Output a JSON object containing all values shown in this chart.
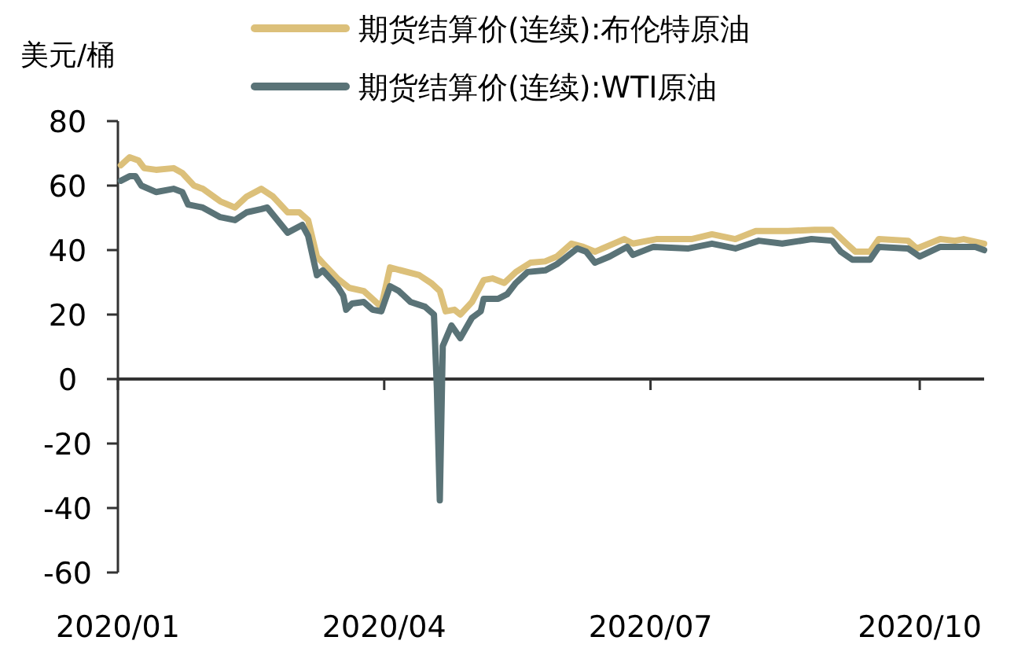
{
  "chart_data": {
    "type": "line",
    "ylabel": "美元/桶",
    "legend": "top",
    "line_style": "solid",
    "marker": "none",
    "xlim": [
      "2020-01-01",
      "2020-10-23"
    ],
    "xticks": [
      {
        "value": "2020-01",
        "label": "2020/01"
      },
      {
        "value": "2020-04",
        "label": "2020/04"
      },
      {
        "value": "2020-07",
        "label": "2020/07"
      },
      {
        "value": "2020-10",
        "label": "2020/10"
      }
    ],
    "ylim": [
      -60,
      80
    ],
    "yticks": [
      -60,
      -40,
      -20,
      0,
      20,
      40,
      60,
      80
    ],
    "series": [
      {
        "name": "期货结算价(连续):布伦特原油",
        "color": "#dcc07a",
        "x": [
          "2020-01-02",
          "2020-01-05",
          "2020-01-08",
          "2020-01-10",
          "2020-01-14",
          "2020-01-20",
          "2020-01-23",
          "2020-01-27",
          "2020-01-30",
          "2020-02-05",
          "2020-02-10",
          "2020-02-14",
          "2020-02-19",
          "2020-02-23",
          "2020-02-28",
          "2020-03-03",
          "2020-03-06",
          "2020-03-09",
          "2020-03-11",
          "2020-03-16",
          "2020-03-20",
          "2020-03-25",
          "2020-03-31",
          "2020-04-03",
          "2020-04-13",
          "2020-04-17",
          "2020-04-20",
          "2020-04-22",
          "2020-04-25",
          "2020-04-27",
          "2020-05-01",
          "2020-05-05",
          "2020-05-08",
          "2020-05-12",
          "2020-05-16",
          "2020-05-21",
          "2020-05-26",
          "2020-05-30",
          "2020-06-04",
          "2020-06-08",
          "2020-06-12",
          "2020-06-22",
          "2020-06-25",
          "2020-07-03",
          "2020-07-15",
          "2020-07-22",
          "2020-07-30",
          "2020-08-06",
          "2020-08-17",
          "2020-08-26",
          "2020-09-01",
          "2020-09-06",
          "2020-09-09",
          "2020-09-14",
          "2020-09-17",
          "2020-09-27",
          "2020-09-30",
          "2020-10-08",
          "2020-10-13",
          "2020-10-16",
          "2020-10-23"
        ],
        "values": [
          66.3,
          68.8,
          67.8,
          65.4,
          64.9,
          65.4,
          63.9,
          60,
          59,
          55.1,
          53.2,
          56.6,
          59,
          56.6,
          51.7,
          51.7,
          49.3,
          38,
          36,
          31.2,
          28.3,
          27.3,
          22.4,
          34.6,
          32.2,
          29.8,
          27.3,
          21,
          21.5,
          20,
          23.9,
          30.7,
          31.2,
          29.8,
          33.2,
          36.1,
          36.5,
          38,
          42,
          41,
          39.5,
          43.4,
          42,
          43.4,
          43.4,
          44.9,
          43.4,
          45.9,
          45.9,
          46.3,
          46.3,
          42,
          39.5,
          39.5,
          43.4,
          42.9,
          40.5,
          43.4,
          42.9,
          43.4,
          42
        ]
      },
      {
        "name": "期货结算价(连续):WTI原油",
        "color": "#5a7377",
        "x": [
          "2020-01-02",
          "2020-01-05",
          "2020-01-07",
          "2020-01-09",
          "2020-01-14",
          "2020-01-20",
          "2020-01-23",
          "2020-01-25",
          "2020-01-30",
          "2020-02-05",
          "2020-02-10",
          "2020-02-14",
          "2020-02-19",
          "2020-02-21",
          "2020-02-28",
          "2020-03-04",
          "2020-03-06",
          "2020-03-09",
          "2020-03-11",
          "2020-03-16",
          "2020-03-18",
          "2020-03-19",
          "2020-03-21",
          "2020-03-25",
          "2020-03-28",
          "2020-03-31",
          "2020-04-03",
          "2020-04-06",
          "2020-04-10",
          "2020-04-15",
          "2020-04-18",
          "2020-04-19",
          "2020-04-20",
          "2020-04-21",
          "2020-04-24",
          "2020-04-27",
          "2020-05-01",
          "2020-05-04",
          "2020-05-05",
          "2020-05-10",
          "2020-05-13",
          "2020-05-16",
          "2020-05-20",
          "2020-05-26",
          "2020-05-30",
          "2020-06-01",
          "2020-06-06",
          "2020-06-09",
          "2020-06-12",
          "2020-06-17",
          "2020-06-23",
          "2020-06-25",
          "2020-07-02",
          "2020-07-14",
          "2020-07-22",
          "2020-07-30",
          "2020-08-07",
          "2020-08-15",
          "2020-08-25",
          "2020-09-01",
          "2020-09-04",
          "2020-09-08",
          "2020-09-14",
          "2020-09-17",
          "2020-09-27",
          "2020-10-01",
          "2020-10-08",
          "2020-10-15",
          "2020-10-20",
          "2020-10-23"
        ],
        "values": [
          61.5,
          62.9,
          62.9,
          60,
          58,
          59,
          58,
          54.1,
          53.2,
          50.2,
          49.3,
          51.7,
          52.7,
          53.2,
          45.4,
          47.8,
          44.4,
          32.2,
          33.7,
          28.8,
          25.9,
          21.5,
          23.4,
          23.9,
          21.5,
          21,
          28.8,
          27.3,
          23.9,
          22.4,
          20,
          -2.9,
          -37.6,
          10.2,
          16.6,
          12.7,
          19,
          21,
          24.9,
          24.9,
          26.3,
          29.8,
          33.2,
          33.7,
          35.6,
          37,
          40.5,
          39.5,
          36.1,
          38,
          41,
          38.5,
          41,
          40.5,
          42,
          40.5,
          42.9,
          42,
          43.4,
          42.9,
          39.5,
          37,
          37,
          41,
          40.5,
          38,
          41,
          41,
          41,
          40
        ]
      }
    ]
  }
}
